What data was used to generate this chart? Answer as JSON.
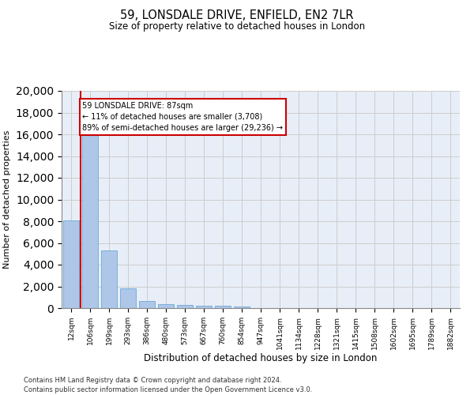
{
  "title": "59, LONSDALE DRIVE, ENFIELD, EN2 7LR",
  "subtitle": "Size of property relative to detached houses in London",
  "xlabel": "Distribution of detached houses by size in London",
  "ylabel": "Number of detached properties",
  "categories": [
    "12sqm",
    "106sqm",
    "199sqm",
    "293sqm",
    "386sqm",
    "480sqm",
    "573sqm",
    "667sqm",
    "760sqm",
    "854sqm",
    "947sqm",
    "1041sqm",
    "1134sqm",
    "1228sqm",
    "1321sqm",
    "1415sqm",
    "1508sqm",
    "1602sqm",
    "1695sqm",
    "1789sqm",
    "1882sqm"
  ],
  "values": [
    8100,
    16500,
    5300,
    1800,
    680,
    380,
    280,
    230,
    190,
    170,
    0,
    0,
    0,
    0,
    0,
    0,
    0,
    0,
    0,
    0,
    0
  ],
  "bar_color": "#aec6e8",
  "bar_edgecolor": "#5a9fd4",
  "vline_x": 0.5,
  "annotation_text_line1": "59 LONSDALE DRIVE: 87sqm",
  "annotation_text_line2": "← 11% of detached houses are smaller (3,708)",
  "annotation_text_line3": "89% of semi-detached houses are larger (29,236) →",
  "annotation_box_facecolor": "#ffffff",
  "annotation_box_edgecolor": "#cc0000",
  "vline_color": "#cc0000",
  "ylim": [
    0,
    20000
  ],
  "yticks": [
    0,
    2000,
    4000,
    6000,
    8000,
    10000,
    12000,
    14000,
    16000,
    18000,
    20000
  ],
  "grid_color": "#cccccc",
  "bg_color": "#e8eef7",
  "footer_line1": "Contains HM Land Registry data © Crown copyright and database right 2024.",
  "footer_line2": "Contains public sector information licensed under the Open Government Licence v3.0."
}
